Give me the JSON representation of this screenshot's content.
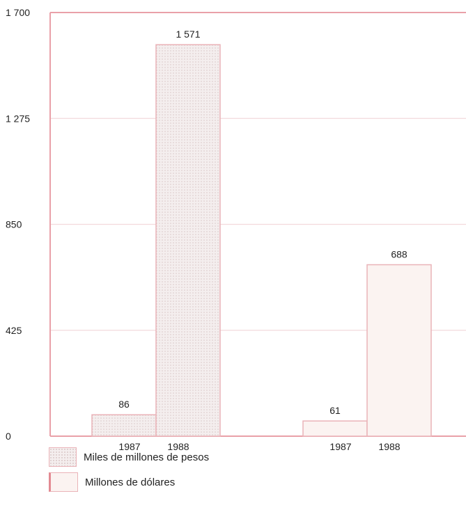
{
  "chart_data": {
    "type": "bar",
    "ylim": [
      0,
      1700
    ],
    "yticks": [
      "0",
      "425",
      "850",
      "1 275",
      "1 700"
    ],
    "grid": true,
    "groups": [
      {
        "bars": [
          {
            "category": "1987",
            "value": 86,
            "label": "86",
            "series": "Miles de millones de pesos"
          },
          {
            "category": "1988",
            "value": 1571,
            "label": "1 571",
            "series": "Miles de millones de pesos"
          }
        ]
      },
      {
        "bars": [
          {
            "category": "1987",
            "value": 61,
            "label": "61",
            "series": "Millones de dólares"
          },
          {
            "category": "1988",
            "value": 688,
            "label": "688",
            "series": "Millones de dólares"
          }
        ]
      }
    ],
    "legend": [
      {
        "name": "Miles de millones de pesos",
        "pattern": "dots"
      },
      {
        "name": "Millones de dólares",
        "pattern": "plain"
      }
    ],
    "colors": {
      "frame": "#e9a0a8",
      "grid": "#f3d9dc",
      "bar_border": "#eab3b8",
      "dots_fill": "#f4eeee",
      "plain_fill": "#fbf3f1"
    }
  }
}
